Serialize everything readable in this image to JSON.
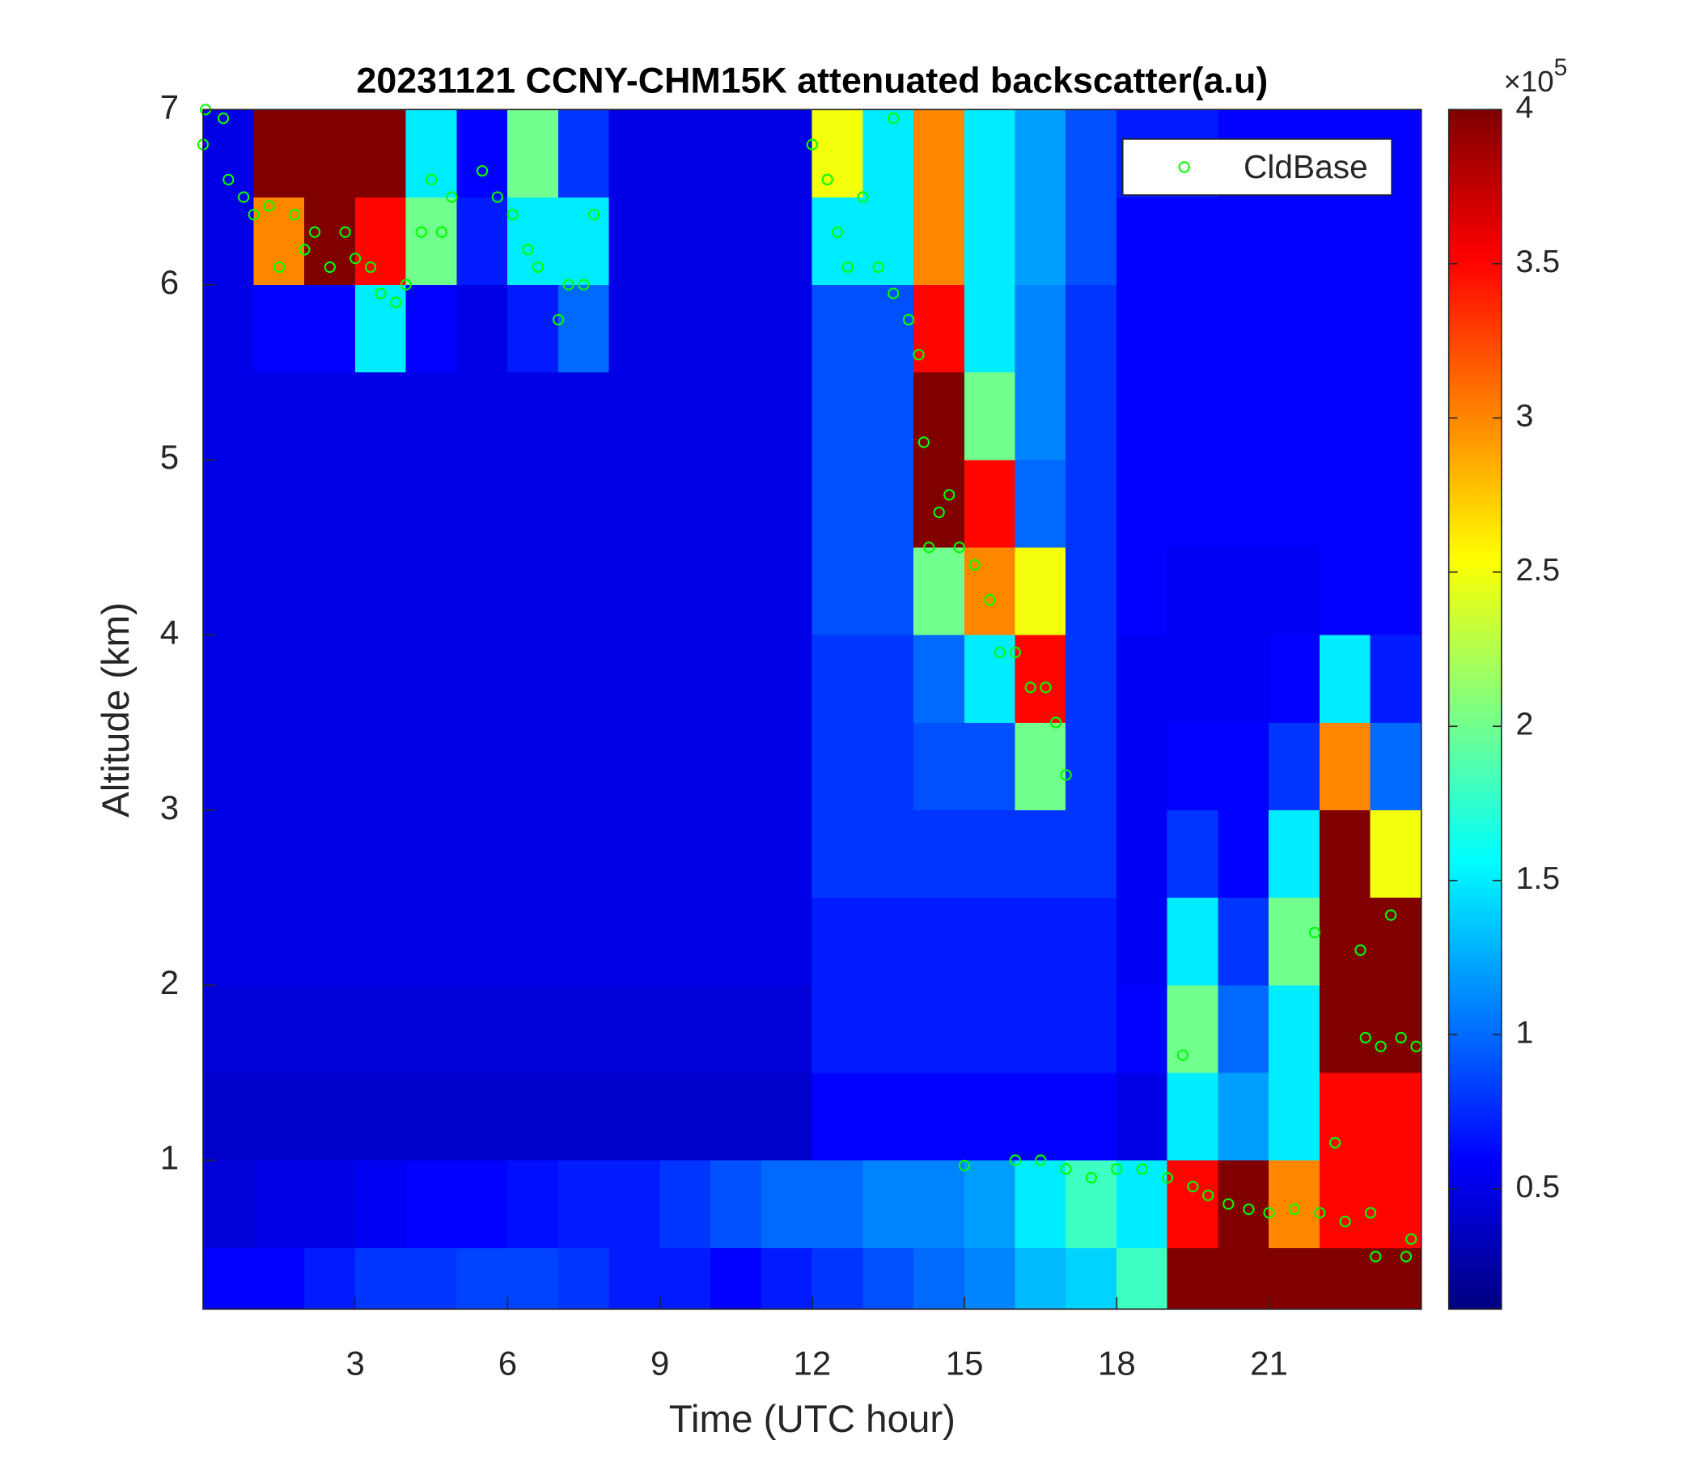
{
  "chart_data": {
    "type": "heatmap",
    "title": "20231121 CCNY-CHM15K attenuated backscatter(a.u)",
    "x_label": "Time (UTC hour)",
    "y_label": "Altitude (km)",
    "xlim": [
      0,
      24
    ],
    "ylim": [
      0.15,
      7
    ],
    "xticks": [
      3,
      6,
      9,
      12,
      15,
      18,
      21
    ],
    "yticks": [
      1,
      2,
      3,
      4,
      5,
      6,
      7
    ],
    "x_bins": [
      0,
      1,
      2,
      3,
      4,
      5,
      6,
      7,
      8,
      9,
      10,
      11,
      12,
      13,
      14,
      15,
      16,
      17,
      18,
      19,
      20,
      21,
      22,
      23,
      24
    ],
    "y_bins": [
      0.15,
      0.5,
      1,
      1.5,
      2,
      2.5,
      3,
      3.5,
      4,
      4.5,
      5,
      5.5,
      6,
      6.5,
      7
    ],
    "z": [
      [
        0.6,
        0.6,
        0.7,
        0.8,
        0.8,
        0.85,
        0.85,
        0.8,
        0.7,
        0.7,
        0.6,
        0.7,
        0.8,
        0.9,
        1,
        1.1,
        1.3,
        1.4,
        1.8,
        4,
        4,
        4,
        4,
        4
      ],
      [
        0.45,
        0.5,
        0.5,
        0.55,
        0.6,
        0.6,
        0.65,
        0.7,
        0.7,
        0.8,
        0.9,
        1,
        1,
        1.1,
        1.1,
        1.2,
        1.5,
        1.8,
        1.5,
        3.5,
        4,
        3,
        3.5,
        3.5
      ],
      [
        0.4,
        0.4,
        0.4,
        0.4,
        0.4,
        0.4,
        0.4,
        0.4,
        0.4,
        0.4,
        0.4,
        0.4,
        0.6,
        0.6,
        0.6,
        0.6,
        0.6,
        0.6,
        0.5,
        1.5,
        1.2,
        1.5,
        3.5,
        3.5
      ],
      [
        0.45,
        0.45,
        0.45,
        0.45,
        0.45,
        0.45,
        0.45,
        0.45,
        0.45,
        0.45,
        0.45,
        0.45,
        0.7,
        0.7,
        0.7,
        0.7,
        0.7,
        0.7,
        0.6,
        2,
        1,
        1.5,
        4,
        4
      ],
      [
        0.5,
        0.5,
        0.5,
        0.5,
        0.5,
        0.5,
        0.5,
        0.5,
        0.5,
        0.5,
        0.5,
        0.5,
        0.7,
        0.7,
        0.7,
        0.7,
        0.7,
        0.7,
        0.55,
        1.5,
        0.8,
        2,
        4,
        4
      ],
      [
        0.5,
        0.5,
        0.5,
        0.5,
        0.5,
        0.5,
        0.5,
        0.5,
        0.5,
        0.5,
        0.5,
        0.5,
        0.8,
        0.8,
        0.8,
        0.8,
        0.8,
        0.8,
        0.55,
        0.8,
        0.6,
        1.5,
        4,
        2.5
      ],
      [
        0.5,
        0.5,
        0.5,
        0.5,
        0.5,
        0.5,
        0.5,
        0.5,
        0.5,
        0.5,
        0.5,
        0.5,
        0.8,
        0.8,
        0.9,
        0.9,
        2,
        0.8,
        0.55,
        0.6,
        0.6,
        0.8,
        3,
        1
      ],
      [
        0.5,
        0.5,
        0.5,
        0.5,
        0.5,
        0.5,
        0.5,
        0.5,
        0.5,
        0.5,
        0.5,
        0.5,
        0.8,
        0.8,
        1,
        1.5,
        3.5,
        0.8,
        0.55,
        0.55,
        0.55,
        0.6,
        1.5,
        0.7
      ],
      [
        0.5,
        0.5,
        0.5,
        0.5,
        0.5,
        0.5,
        0.5,
        0.5,
        0.5,
        0.5,
        0.5,
        0.5,
        0.9,
        0.9,
        2,
        3,
        2.5,
        0.8,
        0.6,
        0.55,
        0.55,
        0.55,
        0.6,
        0.6
      ],
      [
        0.5,
        0.5,
        0.5,
        0.5,
        0.5,
        0.5,
        0.5,
        0.5,
        0.5,
        0.5,
        0.5,
        0.5,
        0.9,
        0.9,
        4,
        3.5,
        1,
        0.8,
        0.6,
        0.6,
        0.6,
        0.6,
        0.6,
        0.6
      ],
      [
        0.5,
        0.5,
        0.5,
        0.5,
        0.5,
        0.5,
        0.5,
        0.5,
        0.5,
        0.5,
        0.5,
        0.5,
        0.9,
        0.9,
        4,
        2,
        1.1,
        0.8,
        0.6,
        0.6,
        0.6,
        0.6,
        0.6,
        0.6
      ],
      [
        0.5,
        0.6,
        0.6,
        1.5,
        0.6,
        0.5,
        0.7,
        1,
        0.5,
        0.5,
        0.5,
        0.5,
        0.9,
        0.9,
        3.5,
        1.5,
        1.1,
        0.8,
        0.6,
        0.6,
        0.6,
        0.6,
        0.6,
        0.6
      ],
      [
        0.5,
        3,
        4,
        3.5,
        2,
        0.7,
        1.5,
        1.5,
        0.5,
        0.5,
        0.5,
        0.5,
        1.5,
        1.5,
        3,
        1.5,
        1.2,
        0.9,
        0.6,
        0.6,
        0.6,
        0.6,
        0.6,
        0.6
      ],
      [
        0.5,
        4,
        4,
        4,
        1.5,
        0.6,
        2,
        0.8,
        0.5,
        0.5,
        0.5,
        0.5,
        2.5,
        1.5,
        3,
        1.5,
        1.2,
        0.9,
        0.7,
        0.7,
        0.6,
        0.6,
        0.6,
        0.6
      ]
    ],
    "colorbar": {
      "lim": [
        0.11,
        4
      ],
      "ticks": [
        0.5,
        1,
        1.5,
        2,
        2.5,
        3,
        3.5,
        4
      ],
      "multiplier_base": "×10",
      "multiplier_exponent": 5
    },
    "legend": "upper right",
    "series": [
      {
        "name": "CldBase",
        "type": "scatter",
        "color": "#00ff00",
        "x": [
          0.0,
          0.05,
          0.4,
          0.5,
          0.8,
          1.0,
          1.3,
          1.5,
          1.8,
          2.0,
          2.2,
          2.5,
          2.8,
          3.0,
          3.3,
          3.5,
          3.8,
          4.0,
          4.3,
          4.5,
          4.7,
          4.9,
          5.5,
          5.8,
          6.1,
          6.4,
          6.6,
          7.0,
          7.2,
          7.5,
          7.7,
          12.0,
          12.3,
          12.5,
          12.7,
          13.0,
          13.6,
          13.3,
          13.6,
          13.9,
          14.1,
          14.2,
          14.3,
          14.5,
          14.7,
          14.9,
          15.2,
          15.5,
          15.7,
          16.0,
          16.3,
          16.6,
          16.8,
          17.0,
          15.0,
          16.0,
          16.5,
          17.0,
          17.5,
          18.0,
          18.5,
          19.0,
          19.3,
          19.5,
          19.8,
          20.2,
          20.6,
          21.0,
          21.5,
          21.9,
          22.0,
          22.3,
          22.5,
          22.8,
          22.9,
          23.2,
          23.4,
          23.6,
          23.7,
          23.8,
          23.9,
          23.1,
          23.0
        ],
        "y": [
          6.8,
          7.0,
          6.95,
          6.6,
          6.5,
          6.4,
          6.45,
          6.1,
          6.4,
          6.2,
          6.3,
          6.1,
          6.3,
          6.15,
          6.1,
          5.95,
          5.9,
          6.0,
          6.3,
          6.6,
          6.3,
          6.5,
          6.65,
          6.5,
          6.4,
          6.2,
          6.1,
          5.8,
          6.0,
          6.0,
          6.4,
          6.8,
          6.6,
          6.3,
          6.1,
          6.5,
          6.95,
          6.1,
          5.95,
          5.8,
          5.6,
          5.1,
          4.5,
          4.7,
          4.8,
          4.5,
          4.4,
          4.2,
          3.9,
          3.9,
          3.7,
          3.7,
          3.5,
          3.2,
          0.97,
          1.0,
          1.0,
          0.95,
          0.9,
          0.95,
          0.95,
          0.9,
          1.6,
          0.85,
          0.8,
          0.75,
          0.72,
          0.7,
          0.72,
          2.3,
          0.7,
          1.1,
          0.65,
          2.2,
          1.7,
          1.65,
          2.4,
          1.7,
          0.45,
          0.55,
          1.65,
          0.45,
          0.7
        ]
      }
    ]
  }
}
